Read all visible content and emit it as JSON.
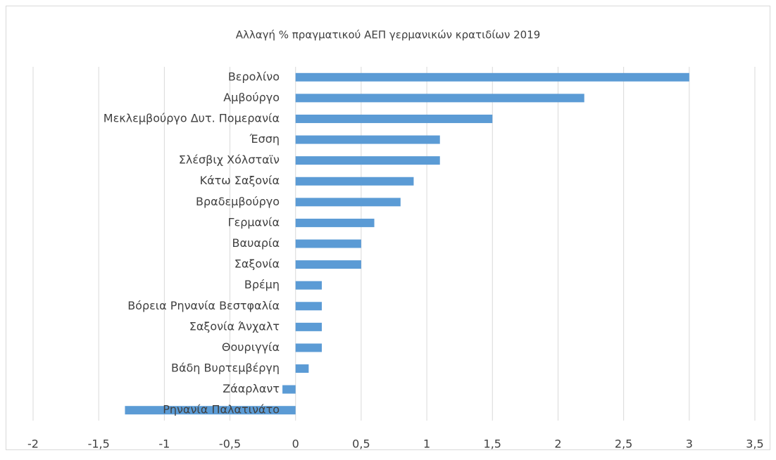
{
  "chart_data": {
    "type": "bar",
    "orientation": "horizontal",
    "title": "Αλλαγή % πραγματικού ΑΕΠ γερμανικών κρατιδίων 2019",
    "categories": [
      "Βερολίνο",
      "Αμβούργο",
      "Μεκλεμβούργο Δυτ. Πομερανία",
      "Έσση",
      "Σλέσβιχ Χόλσταϊν",
      "Κάτω Σαξονία",
      "Βραδεμβούργο",
      "Γερμανία",
      "Βαυαρία",
      "Σαξονία",
      "Βρέμη",
      "Βόρεια Ρηνανία Βεστφαλία",
      "Σαξονία Άνχαλτ",
      "Θουριγγία",
      "Βάδη Βυρτεμβέργη",
      "Ζάαρλαντ",
      "Ρηνανία Παλατινάτο"
    ],
    "values": [
      3,
      2.2,
      1.5,
      1.1,
      1.1,
      0.9,
      0.8,
      0.6,
      0.5,
      0.5,
      0.2,
      0.2,
      0.2,
      0.2,
      0.1,
      -0.1,
      -1.3
    ],
    "color": "#5b9bd5",
    "xlim": [
      -2,
      3.5
    ],
    "xticks": [
      -2,
      {
        "value": -1.5,
        "label": "-1,5"
      },
      -1,
      {
        "value": -0.5,
        "label": "-0,5"
      },
      0,
      {
        "value": 0.5,
        "label": "0,5"
      },
      1,
      {
        "value": 1.5,
        "label": "1,5"
      },
      2,
      {
        "value": 2.5,
        "label": "2,5"
      },
      3,
      {
        "value": 3.5,
        "label": "3,5"
      }
    ],
    "grid": true
  }
}
